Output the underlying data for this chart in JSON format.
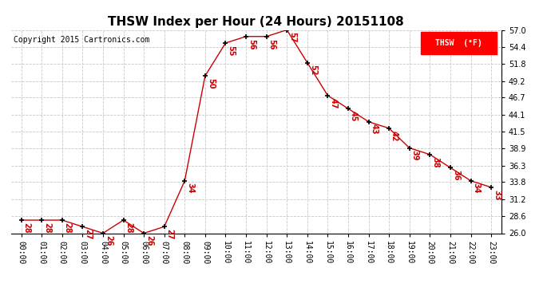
{
  "title": "THSW Index per Hour (24 Hours) 20151108",
  "copyright": "Copyright 2015 Cartronics.com",
  "legend_label": "THSW  (°F)",
  "hours": [
    "00:00",
    "01:00",
    "02:00",
    "03:00",
    "04:00",
    "05:00",
    "06:00",
    "07:00",
    "08:00",
    "09:00",
    "10:00",
    "11:00",
    "12:00",
    "13:00",
    "14:00",
    "15:00",
    "16:00",
    "17:00",
    "18:00",
    "19:00",
    "20:00",
    "21:00",
    "22:00",
    "23:00"
  ],
  "values": [
    28,
    28,
    28,
    27,
    26,
    28,
    26,
    27,
    34,
    50,
    55,
    56,
    56,
    57,
    52,
    47,
    45,
    43,
    42,
    39,
    38,
    36,
    34,
    33
  ],
  "ylim_min": 26.0,
  "ylim_max": 57.0,
  "yticks": [
    26.0,
    28.6,
    31.2,
    33.8,
    36.3,
    38.9,
    41.5,
    44.1,
    46.7,
    49.2,
    51.8,
    54.4,
    57.0
  ],
  "line_color": "#cc0000",
  "marker_color": "black",
  "bg_color": "#ffffff",
  "grid_color": "#c8c8c8",
  "title_fontsize": 11,
  "label_fontsize": 7,
  "annotation_fontsize": 7,
  "copyright_fontsize": 7
}
